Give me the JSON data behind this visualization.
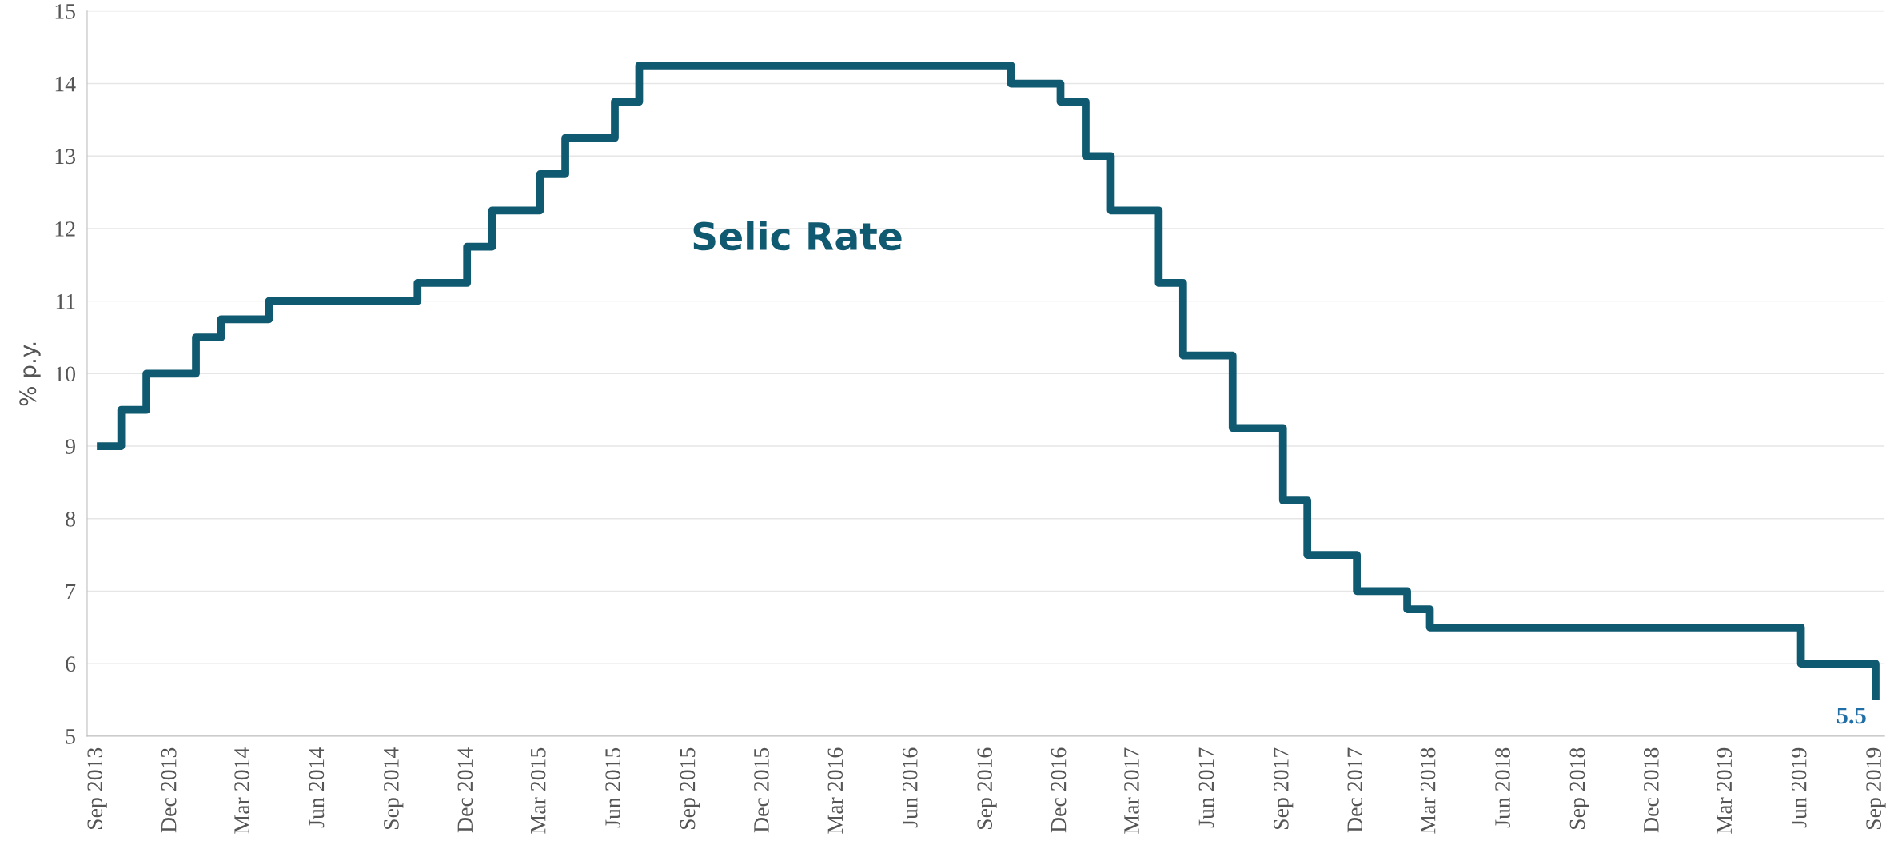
{
  "chart_data": {
    "type": "step",
    "ylabel": "% p.y.",
    "xlim": [
      "2013-08-20",
      "2019-09-12"
    ],
    "ylim": [
      5,
      15
    ],
    "yticks": [
      5,
      6,
      7,
      8,
      9,
      10,
      11,
      12,
      13,
      14,
      15
    ],
    "grid": "y",
    "legend": false,
    "line_style": "solid",
    "marker": "none",
    "xticks": [
      {
        "value": "2013-09",
        "label": "Sep 2013"
      },
      {
        "value": "2013-12",
        "label": "Dec 2013"
      },
      {
        "value": "2014-03",
        "label": "Mar 2014"
      },
      {
        "value": "2014-06",
        "label": "Jun 2014"
      },
      {
        "value": "2014-09",
        "label": "Sep 2014"
      },
      {
        "value": "2014-12",
        "label": "Dec 2014"
      },
      {
        "value": "2015-03",
        "label": "Mar 2015"
      },
      {
        "value": "2015-06",
        "label": "Jun 2015"
      },
      {
        "value": "2015-09",
        "label": "Sep 2015"
      },
      {
        "value": "2015-12",
        "label": "Dec 2015"
      },
      {
        "value": "2016-03",
        "label": "Mar 2016"
      },
      {
        "value": "2016-06",
        "label": "Jun 2016"
      },
      {
        "value": "2016-09",
        "label": "Sep 2016"
      },
      {
        "value": "2016-12",
        "label": "Dec 2016"
      },
      {
        "value": "2017-03",
        "label": "Mar 2017"
      },
      {
        "value": "2017-06",
        "label": "Jun 2017"
      },
      {
        "value": "2017-09",
        "label": "Sep 2017"
      },
      {
        "value": "2017-12",
        "label": "Dec 2017"
      },
      {
        "value": "2018-03",
        "label": "Mar 2018"
      },
      {
        "value": "2018-06",
        "label": "Jun 2018"
      },
      {
        "value": "2018-09",
        "label": "Sep 2018"
      },
      {
        "value": "2018-12",
        "label": "Dec 2018"
      },
      {
        "value": "2019-03",
        "label": "Mar 2019"
      },
      {
        "value": "2019-06",
        "label": "Jun 2019"
      },
      {
        "value": "2019-09",
        "label": "Sep 2019"
      }
    ],
    "series": [
      {
        "name": "Selic Rate",
        "color": "#0f5a70",
        "x": [
          "2013-09",
          "2013-10",
          "2013-11",
          "2014-01",
          "2014-02",
          "2014-04",
          "2014-10",
          "2014-12",
          "2015-01",
          "2015-03",
          "2015-04",
          "2015-06",
          "2015-07",
          "2016-10",
          "2016-12",
          "2017-01",
          "2017-02",
          "2017-04",
          "2017-05",
          "2017-07",
          "2017-09",
          "2017-10",
          "2017-12",
          "2018-02",
          "2018-03",
          "2019-06",
          "2019-09"
        ],
        "values": [
          9.0,
          9.5,
          10.0,
          10.5,
          10.75,
          11.0,
          11.25,
          11.75,
          12.25,
          12.75,
          13.25,
          13.75,
          14.25,
          14.0,
          13.75,
          13.0,
          12.25,
          11.25,
          10.25,
          9.25,
          8.25,
          7.5,
          7.0,
          6.75,
          6.5,
          6.0,
          5.5
        ]
      }
    ],
    "annotations": [
      {
        "text": "5.5",
        "x": "2019-09",
        "y": 5.5
      }
    ]
  }
}
